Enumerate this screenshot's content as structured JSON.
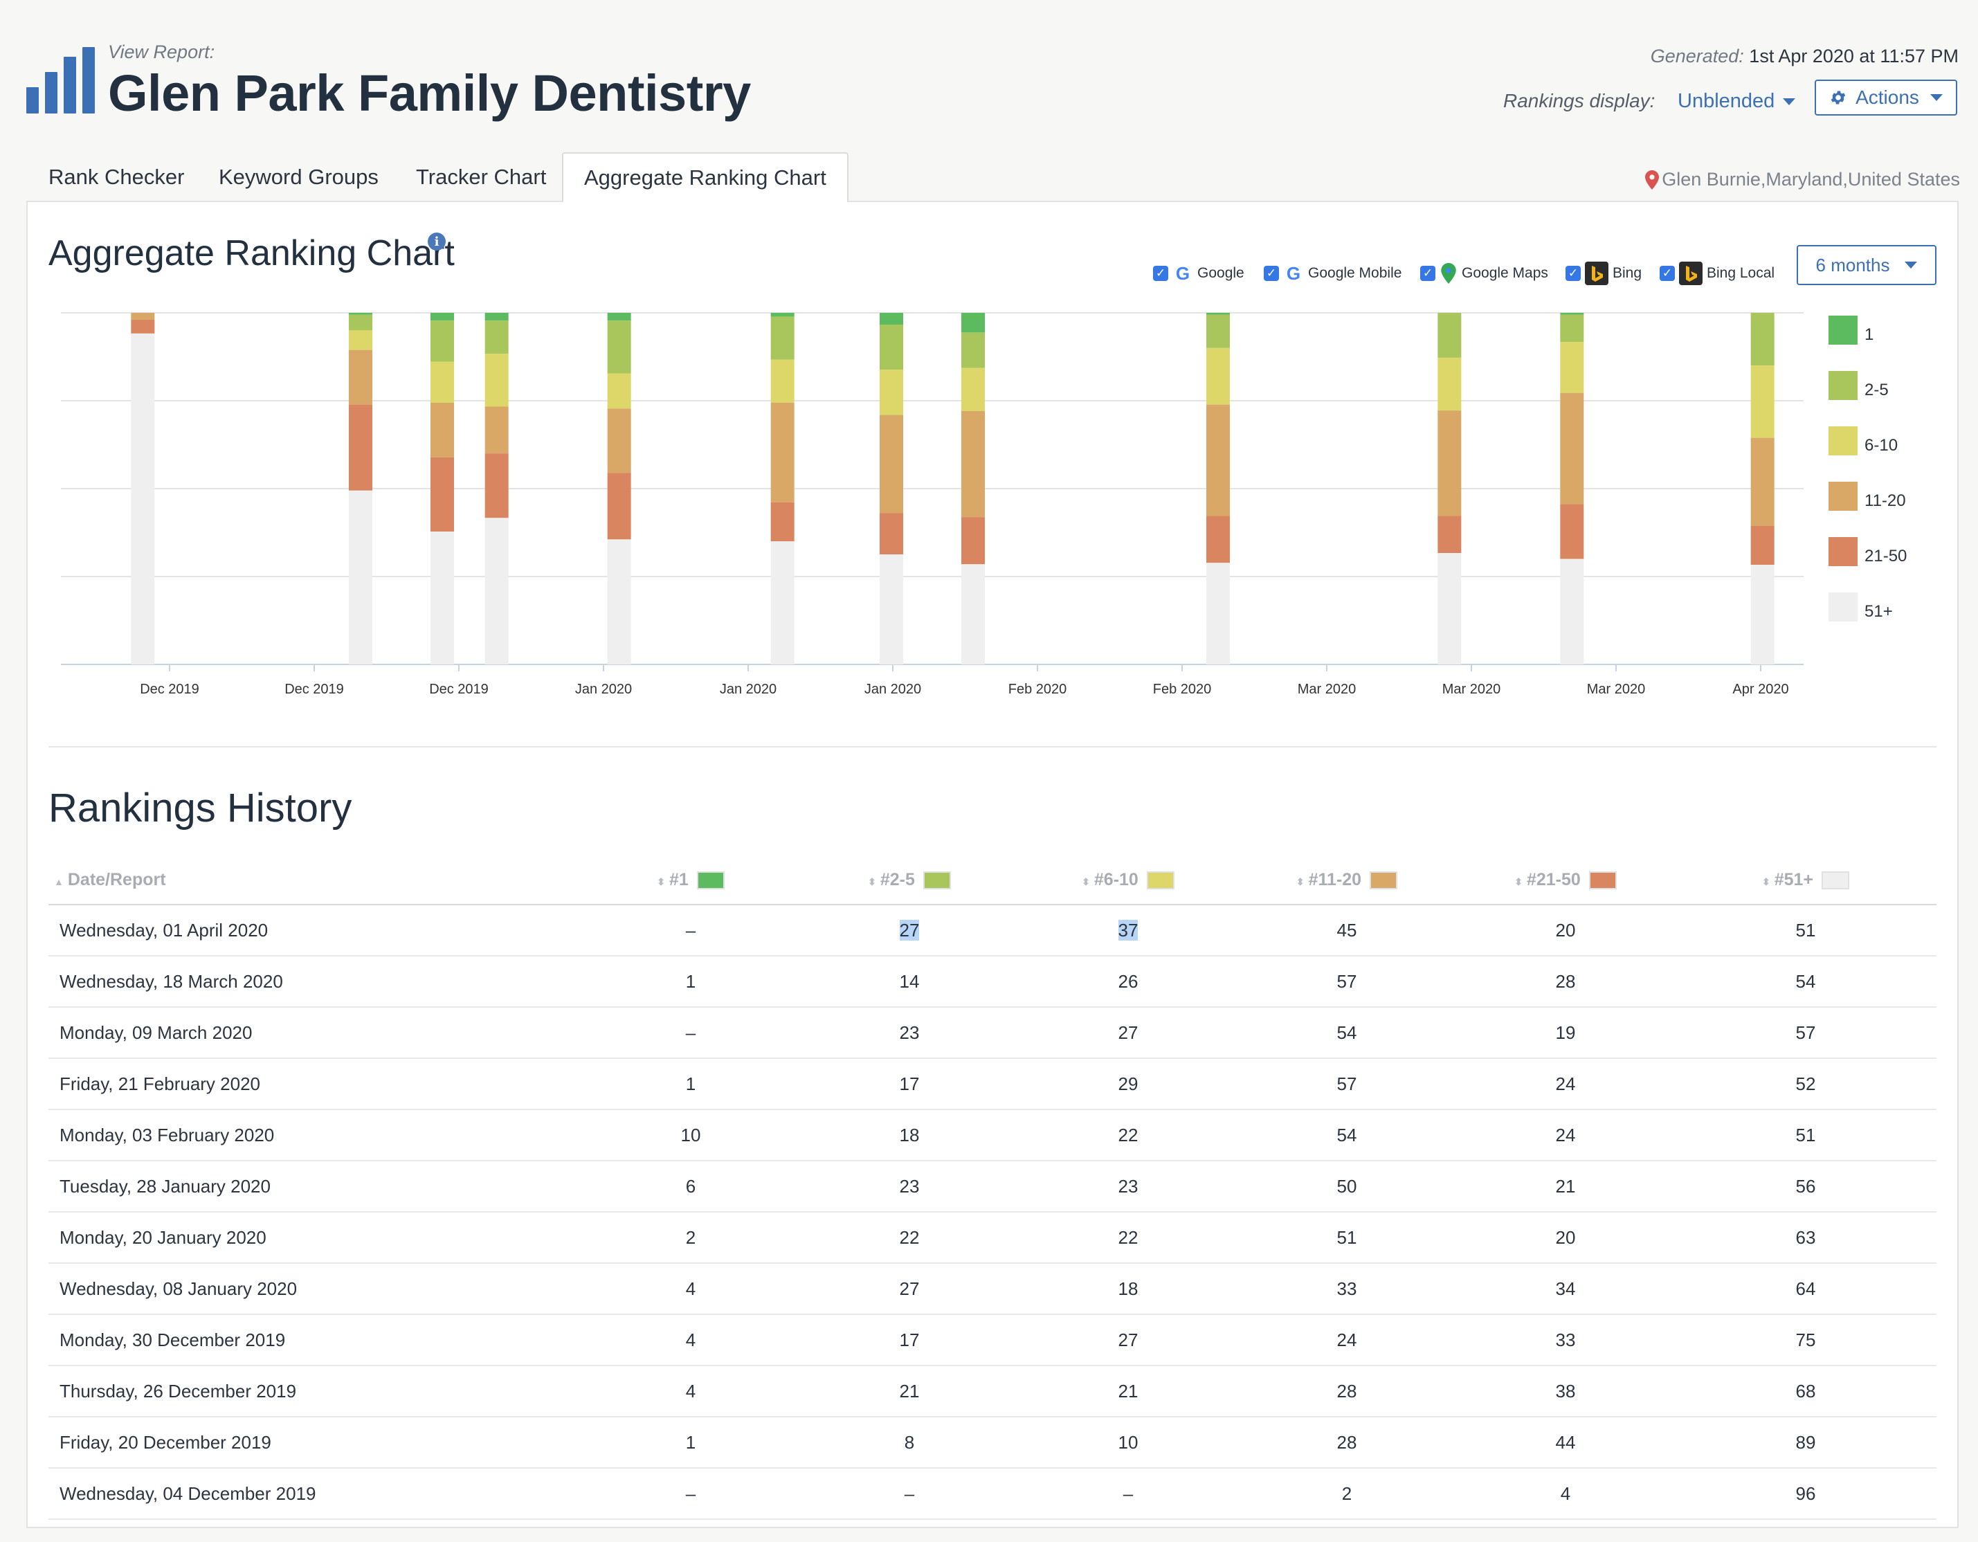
{
  "header": {
    "view_report_label": "View Report:",
    "title": "Glen Park Family Dentistry",
    "generated_label": "Generated:",
    "generated_value": "1st Apr 2020 at 11:57 PM",
    "rankings_display_label": "Rankings display:",
    "rankings_display_value": "Unblended",
    "actions_label": "Actions"
  },
  "tabs": [
    {
      "label": "Rank Checker"
    },
    {
      "label": "Keyword Groups"
    },
    {
      "label": "Tracker Chart"
    },
    {
      "label": "Aggregate Ranking Chart"
    }
  ],
  "location": "Glen Burnie,Maryland,United States",
  "chart_section": {
    "title": "Aggregate Ranking Chart",
    "period": "6 months",
    "engines": [
      {
        "label": "Google",
        "checked": true,
        "icon": "google-icon"
      },
      {
        "label": "Google Mobile",
        "checked": true,
        "icon": "google-icon"
      },
      {
        "label": "Google Maps",
        "checked": true,
        "icon": "map-pin-icon"
      },
      {
        "label": "Bing",
        "checked": true,
        "icon": "bing-icon"
      },
      {
        "label": "Bing Local",
        "checked": true,
        "icon": "bing-icon"
      }
    ]
  },
  "colors": {
    "1": "#5cbb5f",
    "2-5": "#a8c65c",
    "6-10": "#dcd768",
    "11-20": "#d9a866",
    "21-50": "#d9855f",
    "51+": "#efefef",
    "accent": "#3b6fb6"
  },
  "chart_data": {
    "type": "bar",
    "stacked": true,
    "x_tick_labels": [
      "Dec 2019",
      "Dec 2019",
      "Dec 2019",
      "Jan 2020",
      "Jan 2020",
      "Jan 2020",
      "Feb 2020",
      "Feb 2020",
      "Mar 2020",
      "Mar 2020",
      "Mar 2020",
      "Apr 2020"
    ],
    "ranges": [
      "1",
      "2-5",
      "6-10",
      "11-20",
      "21-50",
      "51+"
    ],
    "bars": [
      {
        "date": "2019-12-04",
        "values": [
          0,
          0,
          0,
          2,
          4,
          96
        ]
      },
      {
        "date": "2019-12-20",
        "values": [
          1,
          8,
          10,
          28,
          44,
          89
        ]
      },
      {
        "date": "2019-12-26",
        "values": [
          4,
          21,
          21,
          28,
          38,
          68
        ]
      },
      {
        "date": "2019-12-30",
        "values": [
          4,
          17,
          27,
          24,
          33,
          75
        ]
      },
      {
        "date": "2020-01-08",
        "values": [
          4,
          27,
          18,
          33,
          34,
          64
        ]
      },
      {
        "date": "2020-01-20",
        "values": [
          2,
          22,
          22,
          51,
          20,
          63
        ]
      },
      {
        "date": "2020-01-28",
        "values": [
          6,
          23,
          23,
          50,
          21,
          56
        ]
      },
      {
        "date": "2020-02-03",
        "values": [
          10,
          18,
          22,
          54,
          24,
          51
        ]
      },
      {
        "date": "2020-02-21",
        "values": [
          1,
          17,
          29,
          57,
          24,
          52
        ]
      },
      {
        "date": "2020-03-09",
        "values": [
          0,
          23,
          27,
          54,
          19,
          57
        ]
      },
      {
        "date": "2020-03-18",
        "values": [
          1,
          14,
          26,
          57,
          28,
          54
        ]
      },
      {
        "date": "2020-04-01",
        "values": [
          0,
          27,
          37,
          45,
          20,
          51
        ]
      }
    ],
    "legend_position": "right",
    "grid": true
  },
  "history": {
    "title": "Rankings History",
    "columns": [
      "Date/Report",
      "#1",
      "#2-5",
      "#6-10",
      "#11-20",
      "#21-50",
      "#51+"
    ],
    "rows": [
      [
        "Wednesday, 01 April 2020",
        "–",
        "27",
        "37",
        "45",
        "20",
        "51"
      ],
      [
        "Wednesday, 18 March 2020",
        "1",
        "14",
        "26",
        "57",
        "28",
        "54"
      ],
      [
        "Monday, 09 March 2020",
        "–",
        "23",
        "27",
        "54",
        "19",
        "57"
      ],
      [
        "Friday, 21 February 2020",
        "1",
        "17",
        "29",
        "57",
        "24",
        "52"
      ],
      [
        "Monday, 03 February 2020",
        "10",
        "18",
        "22",
        "54",
        "24",
        "51"
      ],
      [
        "Tuesday, 28 January 2020",
        "6",
        "23",
        "23",
        "50",
        "21",
        "56"
      ],
      [
        "Monday, 20 January 2020",
        "2",
        "22",
        "22",
        "51",
        "20",
        "63"
      ],
      [
        "Wednesday, 08 January 2020",
        "4",
        "27",
        "18",
        "33",
        "34",
        "64"
      ],
      [
        "Monday, 30 December 2019",
        "4",
        "17",
        "27",
        "24",
        "33",
        "75"
      ],
      [
        "Thursday, 26 December 2019",
        "4",
        "21",
        "21",
        "28",
        "38",
        "68"
      ],
      [
        "Friday, 20 December 2019",
        "1",
        "8",
        "10",
        "28",
        "44",
        "89"
      ],
      [
        "Wednesday, 04 December 2019",
        "–",
        "–",
        "–",
        "2",
        "4",
        "96"
      ]
    ]
  }
}
